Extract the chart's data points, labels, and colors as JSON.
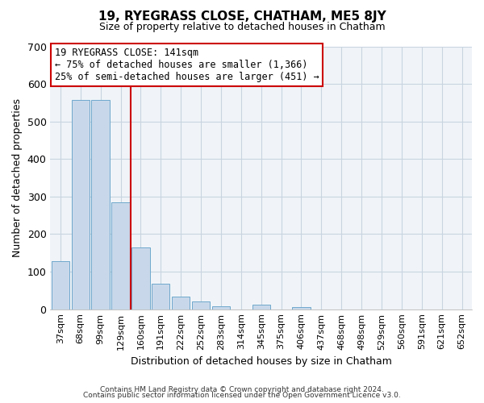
{
  "title": "19, RYEGRASS CLOSE, CHATHAM, ME5 8JY",
  "subtitle": "Size of property relative to detached houses in Chatham",
  "xlabel": "Distribution of detached houses by size in Chatham",
  "ylabel": "Number of detached properties",
  "footer_line1": "Contains HM Land Registry data © Crown copyright and database right 2024.",
  "footer_line2": "Contains public sector information licensed under the Open Government Licence v3.0.",
  "categories": [
    "37sqm",
    "68sqm",
    "99sqm",
    "129sqm",
    "160sqm",
    "191sqm",
    "222sqm",
    "252sqm",
    "283sqm",
    "314sqm",
    "345sqm",
    "375sqm",
    "406sqm",
    "437sqm",
    "468sqm",
    "498sqm",
    "529sqm",
    "560sqm",
    "591sqm",
    "621sqm",
    "652sqm"
  ],
  "values": [
    128,
    557,
    557,
    285,
    165,
    68,
    33,
    20,
    8,
    0,
    12,
    0,
    5,
    0,
    0,
    0,
    0,
    0,
    0,
    0,
    0
  ],
  "bar_color": "#c8d8ea",
  "bar_edge_color": "#6fa8cc",
  "vline_x": 3.5,
  "vline_color": "#cc0000",
  "annotation_title": "19 RYEGRASS CLOSE: 141sqm",
  "annotation_line1": "← 75% of detached houses are smaller (1,366)",
  "annotation_line2": "25% of semi-detached houses are larger (451) →",
  "box_edge_color": "#cc0000",
  "ylim": [
    0,
    700
  ],
  "yticks": [
    0,
    100,
    200,
    300,
    400,
    500,
    600,
    700
  ],
  "background_color": "#ffffff",
  "plot_background": "#f0f4f8",
  "grid_color": "#c8d4e0"
}
